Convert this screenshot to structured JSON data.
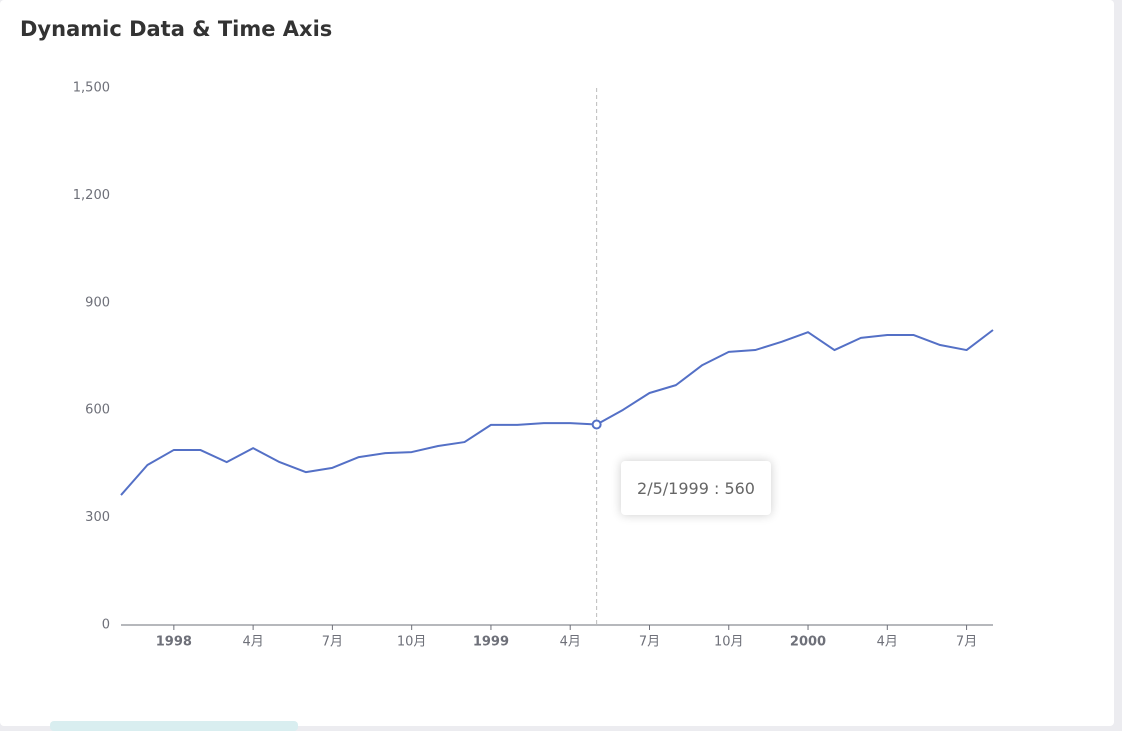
{
  "chart_data": {
    "type": "line",
    "title": "Dynamic Data & Time Axis",
    "x": [
      "1997-11",
      "1997-12",
      "1998-01",
      "1998-02",
      "1998-03",
      "1998-04",
      "1998-05",
      "1998-06",
      "1998-07",
      "1998-08",
      "1998-09",
      "1998-10",
      "1998-11",
      "1998-12",
      "1999-01",
      "1999-02",
      "1999-03",
      "1999-04",
      "1999-05",
      "1999-06",
      "1999-07",
      "1999-08",
      "1999-09",
      "1999-10",
      "1999-11",
      "1999-12",
      "2000-01",
      "2000-02",
      "2000-03",
      "2000-04",
      "2000-05",
      "2000-06",
      "2000-07",
      "2000-08"
    ],
    "series": [
      {
        "color": "#5470c6",
        "values": [
          363,
          447,
          489,
          489,
          455,
          494,
          455,
          427,
          439,
          469,
          480,
          483,
          500,
          511,
          559,
          559,
          564,
          564,
          560,
          601,
          648,
          670,
          726,
          763,
          768,
          791,
          818,
          768,
          802,
          810,
          810,
          782,
          768,
          824
        ]
      }
    ],
    "xlim": [
      "1997-11",
      "2000-08"
    ],
    "xticks": [
      {
        "value": "1998-01",
        "label": "1998"
      },
      {
        "value": "1998-04",
        "label": "4月"
      },
      {
        "value": "1998-07",
        "label": "7月"
      },
      {
        "value": "1998-10",
        "label": "10月"
      },
      {
        "value": "1999-01",
        "label": "1999"
      },
      {
        "value": "1999-04",
        "label": "4月"
      },
      {
        "value": "1999-07",
        "label": "7月"
      },
      {
        "value": "1999-10",
        "label": "10月"
      },
      {
        "value": "2000-01",
        "label": "2000"
      },
      {
        "value": "2000-04",
        "label": "4月"
      },
      {
        "value": "2000-07",
        "label": "7月"
      }
    ],
    "ylim": [
      0,
      1500
    ],
    "yticks": [
      0,
      300,
      600,
      900,
      {
        "value": 1200,
        "label": "1,200"
      },
      {
        "value": 1500,
        "label": "1,500"
      }
    ],
    "tooltip": {
      "x": "1999-05",
      "value": 560,
      "text": "2/5/1999 : 560"
    }
  }
}
